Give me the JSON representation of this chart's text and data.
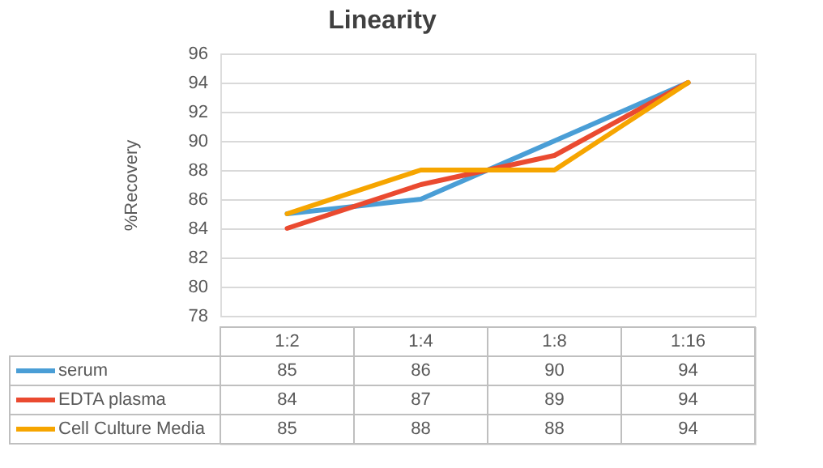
{
  "chart_data": {
    "type": "line",
    "title": "Linearity",
    "ylabel": "%Recovery",
    "categories": [
      "1:2",
      "1:4",
      "1:8",
      "1:16"
    ],
    "series": [
      {
        "name": "serum",
        "color": "#4a9ed6",
        "values": [
          85,
          86,
          90,
          94
        ]
      },
      {
        "name": "EDTA plasma",
        "color": "#ea4a30",
        "values": [
          84,
          87,
          89,
          94
        ]
      },
      {
        "name": "Cell Culture Media",
        "color": "#f6a500",
        "values": [
          85,
          88,
          88,
          94
        ]
      }
    ],
    "ylim": [
      78,
      96
    ],
    "yticks": [
      78,
      80,
      82,
      84,
      86,
      88,
      90,
      92,
      94,
      96
    ],
    "grid": "y",
    "legend": "bottom",
    "data_labels": true
  }
}
